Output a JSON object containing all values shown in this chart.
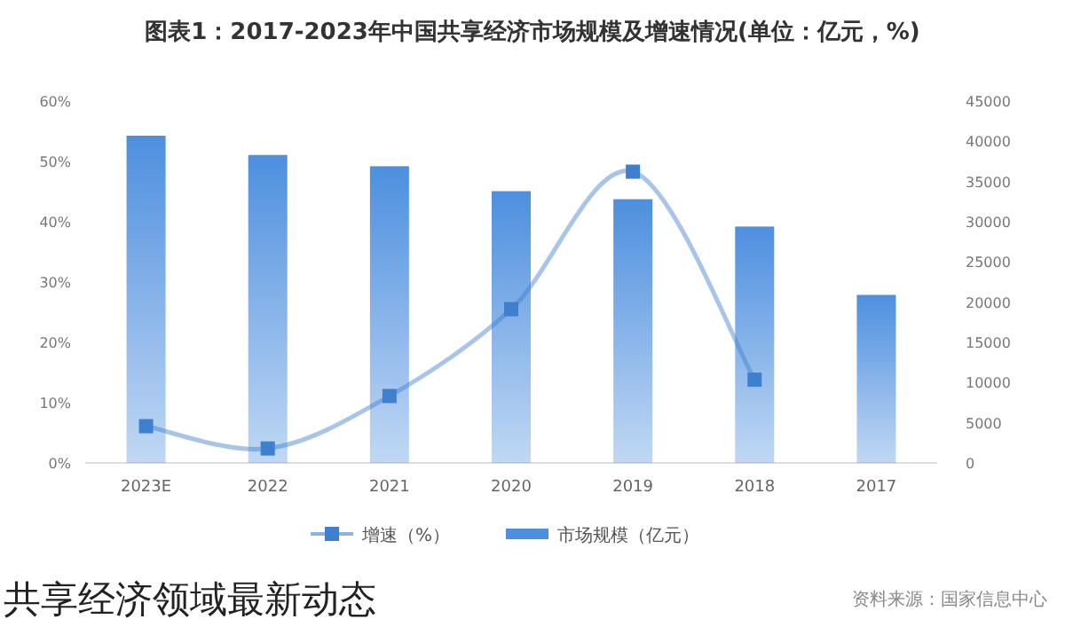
{
  "chart_data": {
    "type": "bar",
    "title": "图表1：2017-2023年中国共享经济市场规模及增速情况(单位：亿元，%)",
    "categories": [
      "2023E",
      "2022",
      "2021",
      "2020",
      "2019",
      "2018",
      "2017"
    ],
    "series": [
      {
        "name": "增速（%）",
        "type": "line",
        "color": "#3f7fcf",
        "marker": "square",
        "values": [
          6.1,
          2.4,
          11.1,
          25.5,
          48.3,
          13.8,
          null
        ]
      },
      {
        "name": "市场规模（亿元）",
        "axis": "y2",
        "color": "#4d8fdf",
        "values": [
          40700,
          38300,
          36900,
          33800,
          32800,
          29400,
          20900
        ]
      }
    ],
    "ylim": [
      0,
      60
    ],
    "yticks": [
      {
        "value": 0,
        "label": "0%"
      },
      {
        "value": 10,
        "label": "10%"
      },
      {
        "value": 20,
        "label": "20%"
      },
      {
        "value": 30,
        "label": "30%"
      },
      {
        "value": 40,
        "label": "40%"
      },
      {
        "value": 50,
        "label": "50%"
      },
      {
        "value": 60,
        "label": "60%"
      }
    ],
    "y2lim": [
      0,
      45000
    ],
    "y2ticks": [
      0,
      5000,
      10000,
      15000,
      20000,
      25000,
      30000,
      35000,
      40000,
      45000
    ],
    "legend": "bottom",
    "grid": false,
    "annotations": [
      "资料来源：国家信息中心",
      "共享经济领域最新动态"
    ]
  }
}
